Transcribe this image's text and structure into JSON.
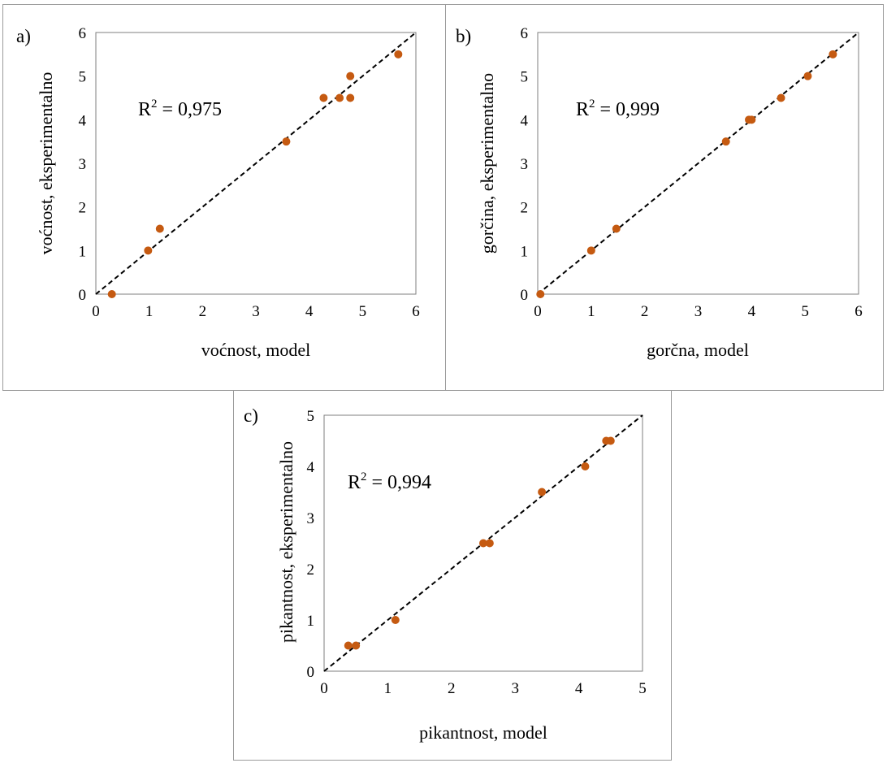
{
  "chart_data": [
    {
      "type": "scatter",
      "panel_label": "a)",
      "xlabel": "voćnost, model",
      "ylabel": "voćnost, eksperimentalno",
      "xlim": [
        0,
        6
      ],
      "ylim": [
        0,
        6
      ],
      "xticks": [
        "0",
        "1",
        "2",
        "3",
        "4",
        "5",
        "6"
      ],
      "yticks": [
        "0",
        "1",
        "2",
        "3",
        "4",
        "5",
        "6"
      ],
      "annotation": {
        "prefix": "R",
        "sup": "2",
        "text": " = 0,975"
      },
      "reference_line": "y = x (dashed)",
      "marker_color": "#c55a11",
      "points": [
        {
          "x": 0.3,
          "y": 0.0
        },
        {
          "x": 0.98,
          "y": 1.0
        },
        {
          "x": 1.2,
          "y": 1.5
        },
        {
          "x": 3.57,
          "y": 3.5
        },
        {
          "x": 4.27,
          "y": 4.5
        },
        {
          "x": 4.57,
          "y": 4.5
        },
        {
          "x": 4.77,
          "y": 4.5
        },
        {
          "x": 4.77,
          "y": 5.0
        },
        {
          "x": 5.67,
          "y": 5.5
        }
      ]
    },
    {
      "type": "scatter",
      "panel_label": "b)",
      "xlabel": "gorčna, model",
      "ylabel": "gorčina, eksperimentalno",
      "xlim": [
        0,
        6
      ],
      "ylim": [
        0,
        6
      ],
      "xticks": [
        "0",
        "1",
        "2",
        "3",
        "4",
        "5",
        "6"
      ],
      "yticks": [
        "0",
        "1",
        "2",
        "3",
        "4",
        "5",
        "6"
      ],
      "annotation": {
        "prefix": "R",
        "sup": "2",
        "text": " = 0,999"
      },
      "reference_line": "y = x (dashed)",
      "marker_color": "#c55a11",
      "points": [
        {
          "x": 0.05,
          "y": 0.0
        },
        {
          "x": 1.0,
          "y": 1.0
        },
        {
          "x": 1.47,
          "y": 1.5
        },
        {
          "x": 3.52,
          "y": 3.5
        },
        {
          "x": 3.95,
          "y": 4.0
        },
        {
          "x": 4.0,
          "y": 4.0
        },
        {
          "x": 4.55,
          "y": 4.5
        },
        {
          "x": 5.05,
          "y": 5.0
        },
        {
          "x": 5.52,
          "y": 5.5
        }
      ]
    },
    {
      "type": "scatter",
      "panel_label": "c)",
      "xlabel": "pikantnost, model",
      "ylabel": "pikantnost, eksperimentalno",
      "xlim": [
        0,
        5
      ],
      "ylim": [
        0,
        5
      ],
      "xticks": [
        "0",
        "1",
        "2",
        "3",
        "4",
        "5"
      ],
      "yticks": [
        "0",
        "1",
        "2",
        "3",
        "4",
        "5"
      ],
      "annotation": {
        "prefix": "R",
        "sup": "2",
        "text": " = 0,994"
      },
      "reference_line": "y = x (dashed)",
      "marker_color": "#c55a11",
      "points": [
        {
          "x": 0.38,
          "y": 0.5
        },
        {
          "x": 0.5,
          "y": 0.5
        },
        {
          "x": 1.12,
          "y": 1.0
        },
        {
          "x": 2.5,
          "y": 2.5
        },
        {
          "x": 2.6,
          "y": 2.5
        },
        {
          "x": 3.42,
          "y": 3.5
        },
        {
          "x": 4.1,
          "y": 4.0
        },
        {
          "x": 4.43,
          "y": 4.5
        },
        {
          "x": 4.5,
          "y": 4.5
        }
      ]
    }
  ]
}
